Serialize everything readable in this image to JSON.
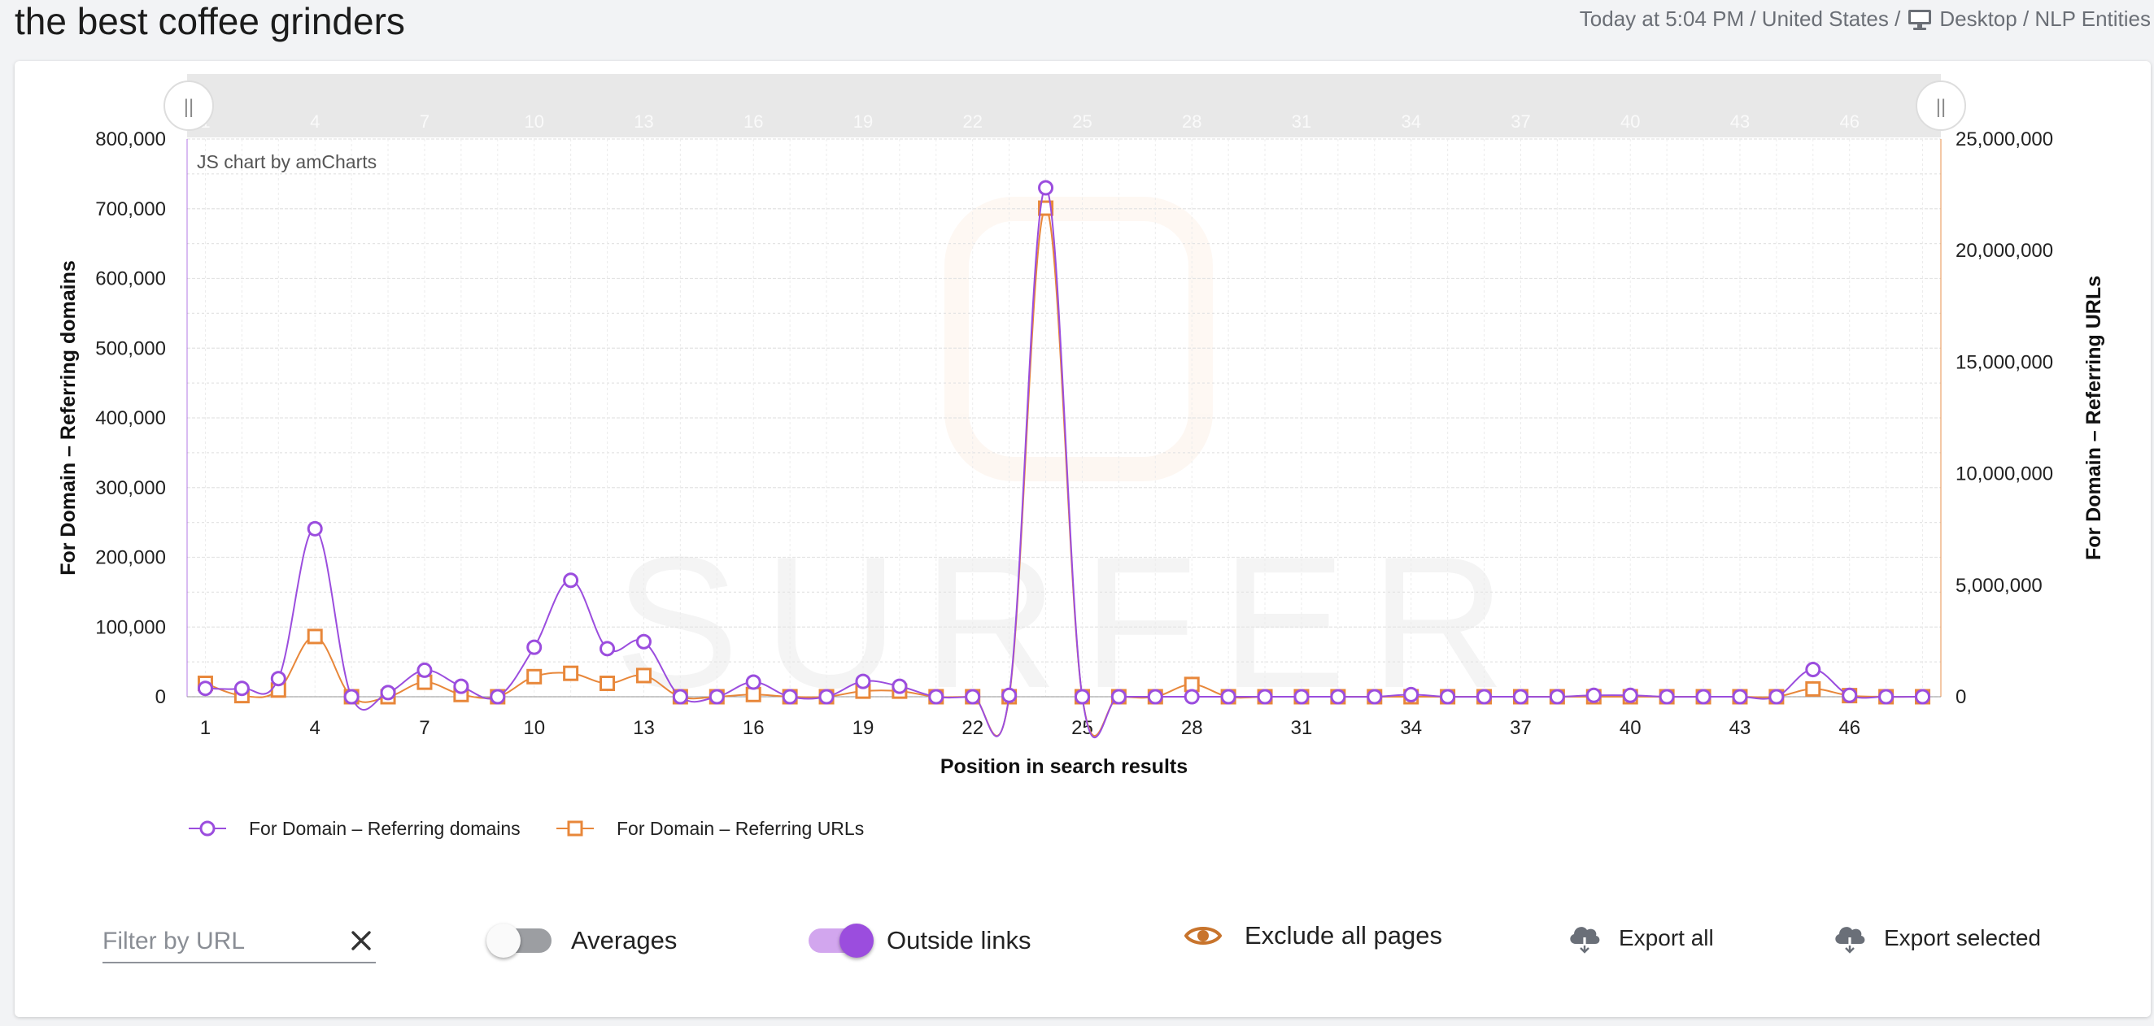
{
  "header": {
    "title": "the best coffee grinders",
    "meta_prefix": "Today at 5:04 PM / United States /",
    "meta_suffix": "Desktop / NLP Entities",
    "device_icon": "desktop-icon"
  },
  "chart_data": {
    "type": "line",
    "credit": "JS chart by amCharts",
    "watermark": "SURFER",
    "xlabel": "Position in search results",
    "ylabel_left": "For Domain – Referring domains",
    "ylabel_right": "For Domain – Referring URLs",
    "x": [
      1,
      2,
      3,
      4,
      5,
      6,
      7,
      8,
      9,
      10,
      11,
      12,
      13,
      14,
      15,
      16,
      17,
      18,
      19,
      20,
      21,
      22,
      23,
      24,
      25,
      26,
      27,
      28,
      29,
      30,
      31,
      32,
      33,
      34,
      35,
      36,
      37,
      38,
      39,
      40,
      41,
      42,
      43,
      44,
      45,
      46,
      47,
      48
    ],
    "x_ticks": [
      1,
      4,
      7,
      10,
      13,
      16,
      19,
      22,
      25,
      28,
      31,
      34,
      37,
      40,
      43,
      46
    ],
    "y_left_ticks": [
      "0",
      "100,000",
      "200,000",
      "300,000",
      "400,000",
      "500,000",
      "600,000",
      "700,000",
      "800,000"
    ],
    "y_right_ticks": [
      "0",
      "5,000,000",
      "10,000,000",
      "15,000,000",
      "20,000,000",
      "25,000,000"
    ],
    "ylim_left": [
      0,
      800000
    ],
    "ylim_right": [
      0,
      25000000
    ],
    "grid": true,
    "legend_position": "bottom-left",
    "series": [
      {
        "name": "For Domain – Referring domains",
        "axis": "left",
        "marker": "circle",
        "color": "#9b4dde",
        "values": [
          12000,
          12000,
          26000,
          241000,
          0,
          6000,
          38000,
          15000,
          0,
          71000,
          167000,
          69000,
          79000,
          0,
          0,
          21000,
          0,
          0,
          22000,
          15000,
          0,
          0,
          2000,
          730000,
          0,
          0,
          0,
          0,
          0,
          0,
          0,
          0,
          0,
          3000,
          0,
          0,
          0,
          0,
          2000,
          2000,
          0,
          0,
          0,
          0,
          39000,
          2000,
          0,
          0
        ]
      },
      {
        "name": "For Domain – Referring URLs",
        "axis": "right",
        "marker": "square",
        "color": "#e8873a",
        "values": [
          600000,
          50000,
          300000,
          2700000,
          0,
          0,
          650000,
          100000,
          0,
          900000,
          1050000,
          600000,
          950000,
          0,
          0,
          100000,
          0,
          0,
          250000,
          250000,
          0,
          0,
          0,
          21900000,
          0,
          0,
          0,
          550000,
          0,
          0,
          0,
          0,
          0,
          0,
          0,
          0,
          0,
          0,
          0,
          0,
          0,
          0,
          0,
          0,
          350000,
          50000,
          0,
          0
        ]
      }
    ]
  },
  "navigator": {
    "left_handle_glyph": "||",
    "right_handle_glyph": "||"
  },
  "controls": {
    "filter_placeholder": "Filter by URL",
    "filter_value": "",
    "clear_icon": "close-icon",
    "averages_label": "Averages",
    "averages_on": false,
    "outside_links_label": "Outside links",
    "outside_links_on": true,
    "exclude_label": "Exclude all pages",
    "exclude_icon_color": "#c8742c",
    "export_all_label": "Export all",
    "export_selected_label": "Export selected",
    "accent": "#9b4dde",
    "secondary": "#e8873a"
  }
}
